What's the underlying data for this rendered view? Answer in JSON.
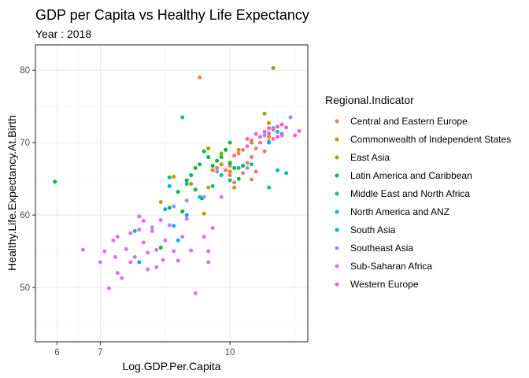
{
  "chart_data": {
    "type": "scatter",
    "title": "GDP per Capita vs Healthy Life Expectancy",
    "subtitle": "Year : 2018",
    "xlabel": "Log.GDP.Per.Capita",
    "ylabel": "Healthy.Life.Expectancy.At.Birth",
    "xlim": [
      5.5,
      11.8
    ],
    "ylim": [
      42.5,
      83.5
    ],
    "x_ticks": [
      6,
      7,
      10
    ],
    "y_ticks": [
      50,
      60,
      70,
      80
    ],
    "grid": true,
    "legend_position": "right",
    "legend_title": "Regional.Indicator",
    "series": [
      {
        "name": "Central and Eastern Europe",
        "color": "#F8766D",
        "points": [
          [
            9.3,
            79.0
          ],
          [
            10.1,
            68.2
          ],
          [
            10.2,
            68.5
          ],
          [
            10.3,
            69.0
          ],
          [
            10.4,
            67.2
          ],
          [
            10.5,
            68.0
          ],
          [
            10.6,
            69.2
          ],
          [
            10.7,
            70.0
          ],
          [
            10.0,
            66.8
          ],
          [
            9.8,
            67.0
          ],
          [
            9.9,
            66.2
          ],
          [
            10.2,
            66.5
          ],
          [
            10.3,
            65.8
          ],
          [
            10.5,
            64.9
          ],
          [
            10.6,
            66.0
          ],
          [
            10.8,
            68.8
          ],
          [
            10.9,
            70.2
          ],
          [
            10.4,
            70.5
          ],
          [
            9.7,
            66.5
          ],
          [
            10.1,
            64.5
          ],
          [
            10.0,
            65.5
          ]
        ]
      },
      {
        "name": "Commonwealth of Independent States",
        "color": "#D39200",
        "points": [
          [
            8.4,
            61.8
          ],
          [
            8.7,
            65.3
          ],
          [
            9.1,
            64.3
          ],
          [
            9.5,
            63.8
          ],
          [
            9.6,
            66.2
          ],
          [
            9.8,
            67.0
          ],
          [
            10.0,
            66.0
          ],
          [
            10.1,
            63.8
          ],
          [
            9.4,
            60.2
          ],
          [
            10.2,
            69.0
          ],
          [
            10.9,
            70.8
          ]
        ]
      },
      {
        "name": "East Asia",
        "color": "#93AA00",
        "points": [
          [
            10.8,
            74.0
          ],
          [
            10.9,
            72.7
          ],
          [
            11.0,
            80.3
          ],
          [
            9.5,
            69.2
          ],
          [
            9.8,
            68.5
          ],
          [
            10.5,
            70.0
          ]
        ]
      },
      {
        "name": "Latin America and Caribbean",
        "color": "#00BA38",
        "points": [
          [
            5.95,
            64.6
          ],
          [
            8.4,
            55.5
          ],
          [
            8.6,
            61.0
          ],
          [
            8.8,
            63.2
          ],
          [
            9.0,
            64.8
          ],
          [
            9.1,
            65.5
          ],
          [
            9.2,
            66.5
          ],
          [
            9.3,
            67.0
          ],
          [
            9.4,
            68.8
          ],
          [
            9.5,
            68.0
          ],
          [
            9.6,
            66.8
          ],
          [
            9.7,
            67.5
          ],
          [
            9.8,
            68.0
          ],
          [
            9.9,
            69.0
          ],
          [
            10.0,
            67.2
          ],
          [
            10.1,
            66.5
          ],
          [
            10.2,
            65.0
          ],
          [
            10.3,
            66.8
          ],
          [
            9.35,
            62.3
          ],
          [
            8.9,
            60.5
          ],
          [
            9.2,
            63.5
          ],
          [
            10.0,
            70.0
          ]
        ]
      },
      {
        "name": "Middle East and North Africa",
        "color": "#00C19F",
        "points": [
          [
            8.9,
            73.5
          ],
          [
            9.0,
            64.3
          ],
          [
            9.3,
            62.5
          ],
          [
            9.6,
            64.0
          ],
          [
            9.8,
            65.5
          ],
          [
            10.0,
            64.8
          ],
          [
            10.2,
            66.5
          ],
          [
            10.5,
            67.0
          ],
          [
            10.9,
            63.8
          ],
          [
            11.1,
            66.2
          ],
          [
            11.3,
            65.8
          ],
          [
            10.8,
            71.5
          ],
          [
            8.6,
            65.2
          ],
          [
            7.8,
            57.8
          ]
        ]
      },
      {
        "name": "North America and ANZ",
        "color": "#00B9E3",
        "points": [
          [
            10.9,
            70.0
          ],
          [
            11.0,
            72.0
          ],
          [
            11.1,
            71.5
          ],
          [
            11.2,
            71.2
          ]
        ]
      },
      {
        "name": "South Asia",
        "color": "#00ADFA",
        "points": [
          [
            7.9,
            53.5
          ],
          [
            8.5,
            60.8
          ],
          [
            8.8,
            56.5
          ],
          [
            8.6,
            64.0
          ],
          [
            9.0,
            60.0
          ],
          [
            8.7,
            58.5
          ]
        ]
      },
      {
        "name": "Southeast Asia",
        "color": "#8C94FF",
        "points": [
          [
            8.7,
            61.2
          ],
          [
            9.0,
            62.0
          ],
          [
            9.4,
            62.5
          ],
          [
            9.7,
            66.0
          ],
          [
            10.4,
            66.5
          ],
          [
            10.8,
            71.0
          ],
          [
            11.4,
            73.5
          ],
          [
            8.2,
            58.3
          ]
        ]
      },
      {
        "name": "Sub-Saharan Africa",
        "color": "#DB72FB",
        "points": [
          [
            6.6,
            55.2
          ],
          [
            7.1,
            55.0
          ],
          [
            7.2,
            49.9
          ],
          [
            7.3,
            56.5
          ],
          [
            7.35,
            54.2
          ],
          [
            7.4,
            57.0
          ],
          [
            7.4,
            52.0
          ],
          [
            7.5,
            51.3
          ],
          [
            7.6,
            55.3
          ],
          [
            7.7,
            53.5
          ],
          [
            7.7,
            57.5
          ],
          [
            7.8,
            54.2
          ],
          [
            7.9,
            58.0
          ],
          [
            7.9,
            59.8
          ],
          [
            8.0,
            56.2
          ],
          [
            8.0,
            59.2
          ],
          [
            8.1,
            52.5
          ],
          [
            8.1,
            54.8
          ],
          [
            8.2,
            57.8
          ],
          [
            8.3,
            55.2
          ],
          [
            8.4,
            59.3
          ],
          [
            8.45,
            53.8
          ],
          [
            8.5,
            56.5
          ],
          [
            8.6,
            58.6
          ],
          [
            8.7,
            55.0
          ],
          [
            8.8,
            53.7
          ],
          [
            8.9,
            57.0
          ],
          [
            9.0,
            59.5
          ],
          [
            9.1,
            55.1
          ],
          [
            9.2,
            49.2
          ],
          [
            9.4,
            57.0
          ],
          [
            9.5,
            55.0
          ],
          [
            9.5,
            53.5
          ],
          [
            9.6,
            58.2
          ],
          [
            9.8,
            62.5
          ],
          [
            8.3,
            52.8
          ],
          [
            7.0,
            53.5
          ]
        ]
      },
      {
        "name": "Western Europe",
        "color": "#FF61C3",
        "points": [
          [
            10.6,
            71.2
          ],
          [
            10.7,
            70.8
          ],
          [
            10.8,
            71.5
          ],
          [
            10.9,
            72.0
          ],
          [
            11.0,
            70.5
          ],
          [
            11.0,
            71.8
          ],
          [
            11.1,
            72.2
          ],
          [
            11.1,
            70.8
          ],
          [
            11.2,
            71.0
          ],
          [
            11.3,
            72.1
          ],
          [
            11.5,
            71.0
          ],
          [
            11.6,
            71.6
          ],
          [
            10.4,
            69.5
          ],
          [
            10.5,
            70.3
          ],
          [
            11.2,
            72.5
          ],
          [
            10.9,
            71.3
          ]
        ]
      }
    ]
  }
}
